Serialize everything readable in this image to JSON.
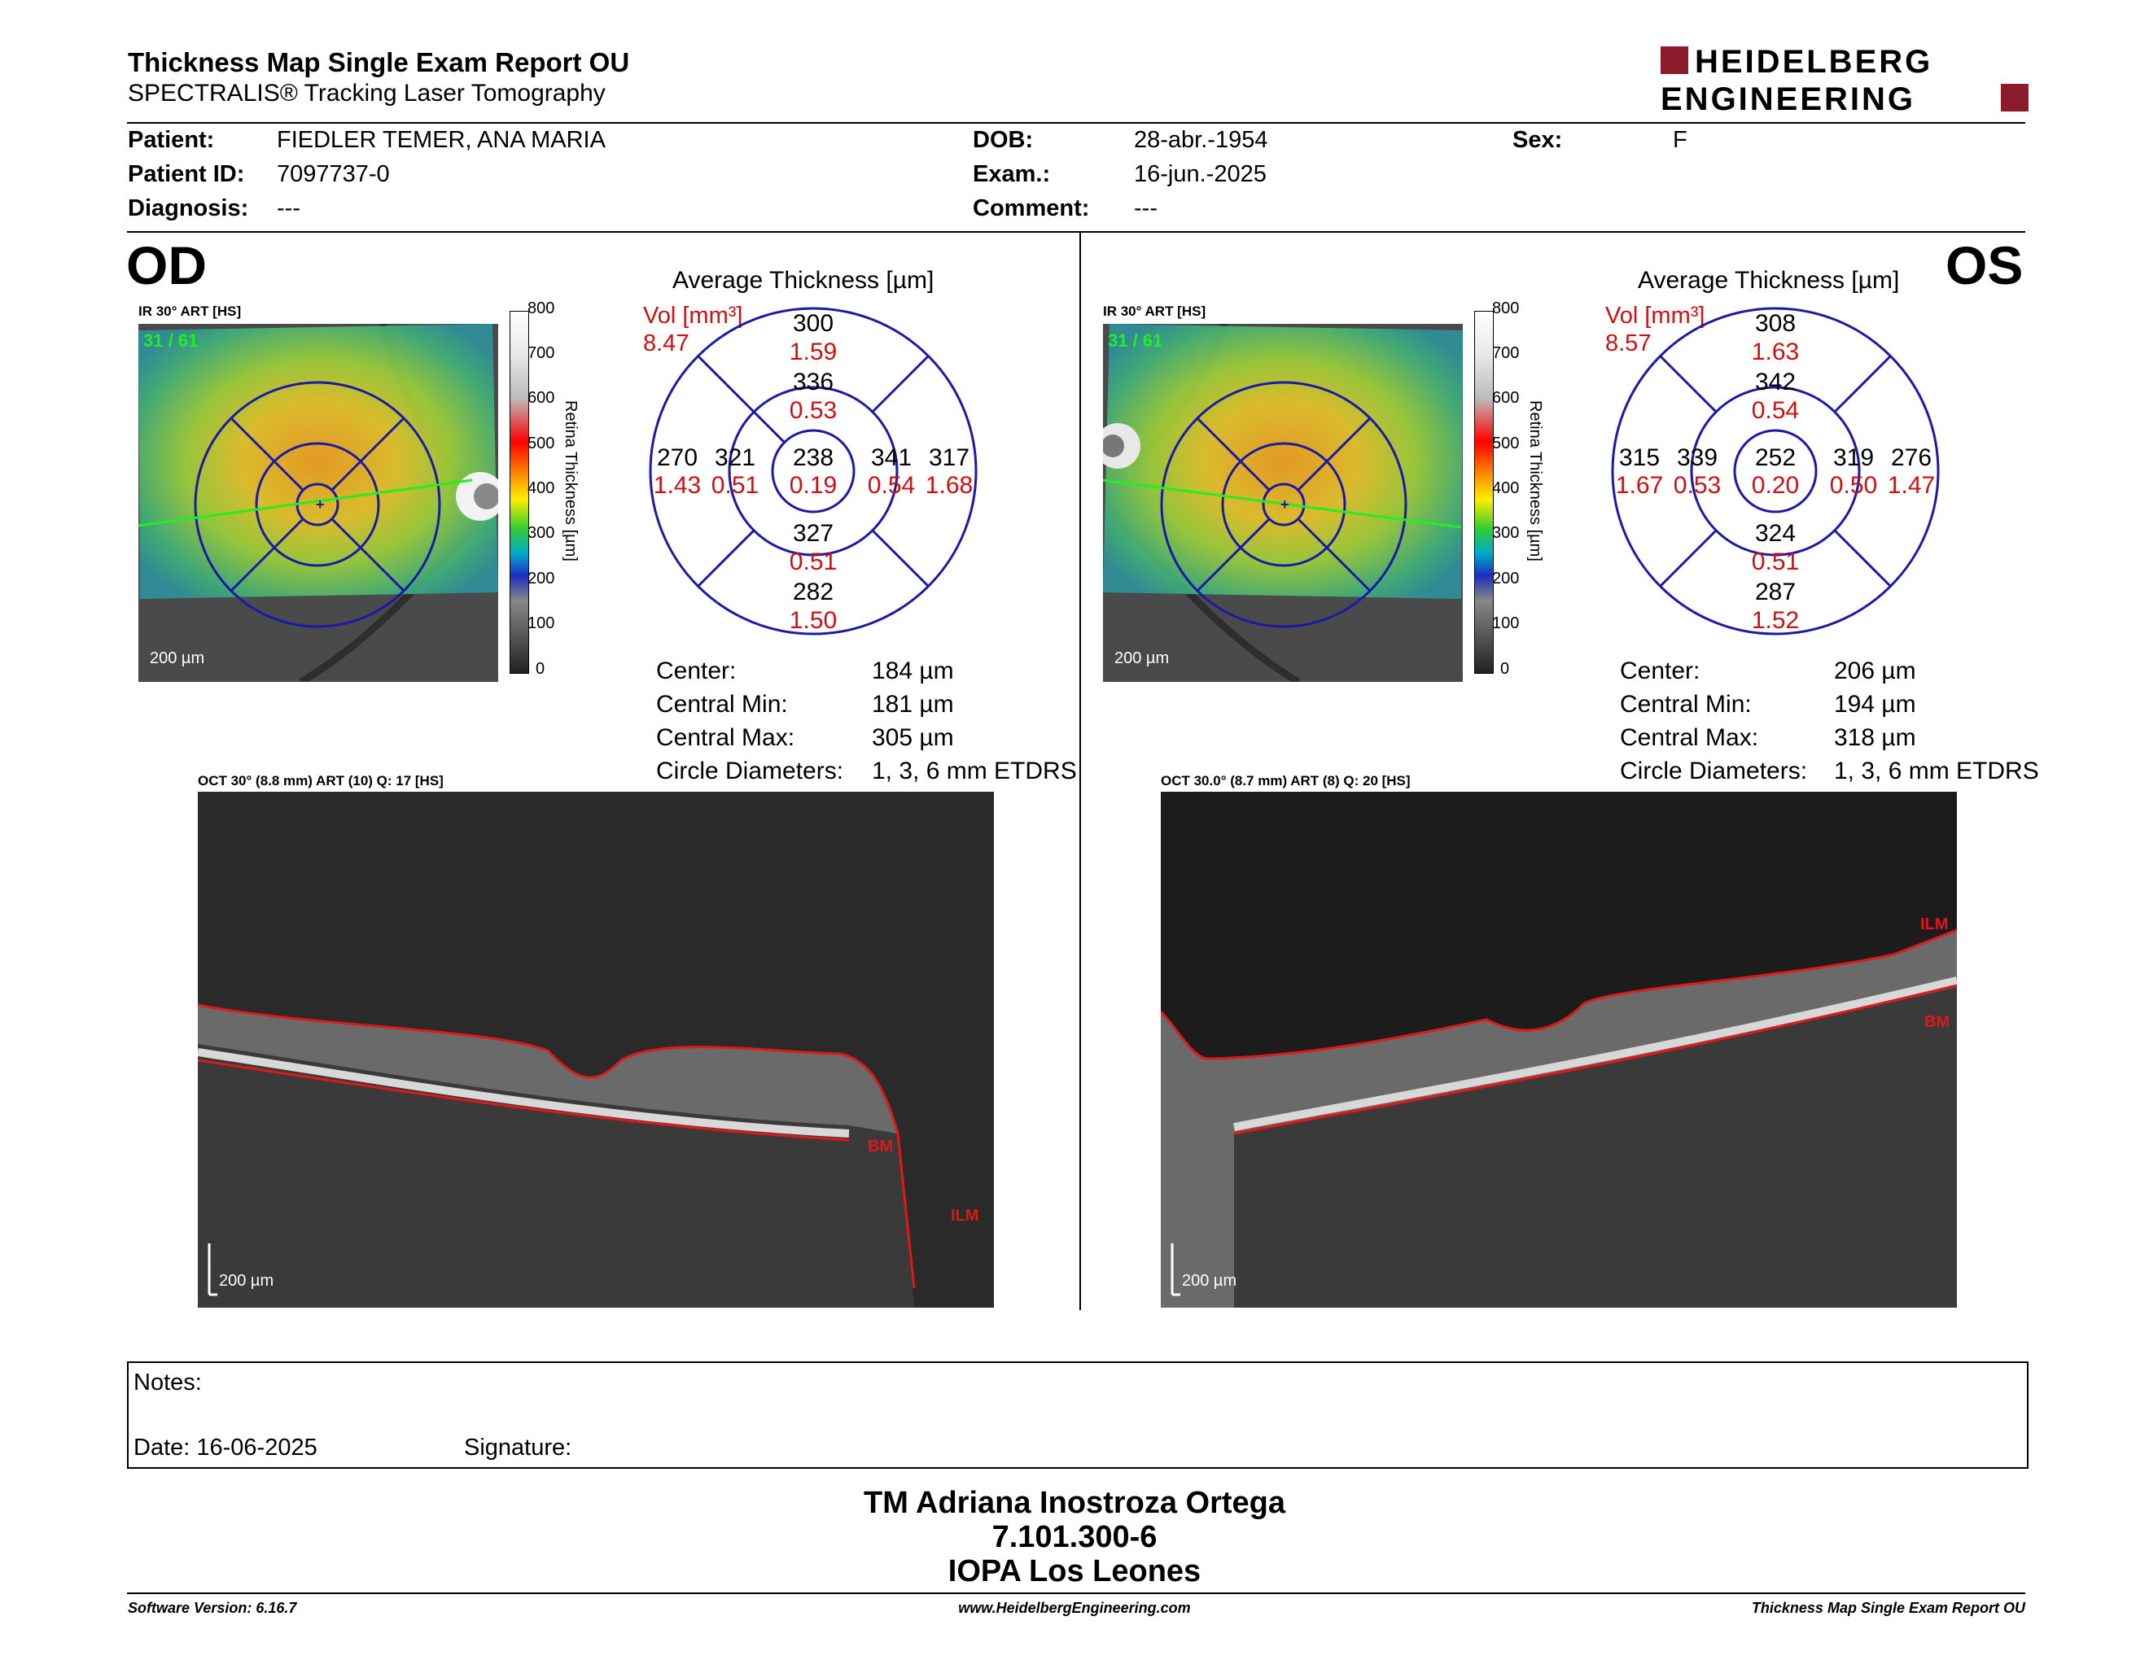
{
  "header": {
    "title": "Thickness Map Single Exam Report OU",
    "subtitle": "SPECTRALIS® Tracking Laser Tomography",
    "logo_top": "HEIDELBERG",
    "logo_bottom": "ENGINEERING",
    "logo_color": "#8b1a2b"
  },
  "patient": {
    "patient_label": "Patient:",
    "patient_value": "FIEDLER TEMER, ANA MARIA",
    "id_label": "Patient ID:",
    "id_value": "7097737-0",
    "diag_label": "Diagnosis:",
    "diag_value": "---",
    "dob_label": "DOB:",
    "dob_value": "28-abr.-1954",
    "exam_label": "Exam.:",
    "exam_value": "16-jun.-2025",
    "comment_label": "Comment:",
    "comment_value": "---",
    "sex_label": "Sex:",
    "sex_value": "F"
  },
  "od": {
    "eye": "OD",
    "ir_label": "IR 30° ART [HS]",
    "frame": "31 / 61",
    "scale": "200 µm",
    "colorbar_ticks": [
      "800",
      "700",
      "600",
      "500",
      "400",
      "300",
      "200",
      "100",
      "0"
    ],
    "colorbar_label": "Retina Thickness [µm]",
    "avg_title": "Average Thickness [µm]",
    "vol_label": "Vol [mm³]",
    "vol_value": "8.47",
    "grid": {
      "center": {
        "t": "238",
        "v": "0.19"
      },
      "inner_sup": {
        "t": "336",
        "v": "0.53"
      },
      "inner_inf": {
        "t": "327",
        "v": "0.51"
      },
      "inner_left": {
        "t": "321",
        "v": "0.51"
      },
      "inner_right": {
        "t": "341",
        "v": "0.54"
      },
      "outer_sup": {
        "t": "300",
        "v": "1.59"
      },
      "outer_inf": {
        "t": "282",
        "v": "1.50"
      },
      "outer_left": {
        "t": "270",
        "v": "1.43"
      },
      "outer_right": {
        "t": "317",
        "v": "1.68"
      }
    },
    "stats": [
      {
        "label": "Center:",
        "value": "184 µm"
      },
      {
        "label": "Central Min:",
        "value": "181 µm"
      },
      {
        "label": "Central Max:",
        "value": "305 µm"
      },
      {
        "label": "Circle Diameters:",
        "value": "1, 3, 6 mm ETDRS"
      }
    ],
    "oct_label": "OCT 30° (8.8 mm) ART (10) Q: 17 [HS]",
    "oct_scale": "200 µm",
    "ilm": "ILM",
    "bm": "BM"
  },
  "os": {
    "eye": "OS",
    "ir_label": "IR 30° ART [HS]",
    "frame": "31 / 61",
    "scale": "200 µm",
    "colorbar_ticks": [
      "800",
      "700",
      "600",
      "500",
      "400",
      "300",
      "200",
      "100",
      "0"
    ],
    "colorbar_label": "Retina Thickness [µm]",
    "avg_title": "Average Thickness [µm]",
    "vol_label": "Vol [mm³]",
    "vol_value": "8.57",
    "grid": {
      "center": {
        "t": "252",
        "v": "0.20"
      },
      "inner_sup": {
        "t": "342",
        "v": "0.54"
      },
      "inner_inf": {
        "t": "324",
        "v": "0.51"
      },
      "inner_left": {
        "t": "339",
        "v": "0.53"
      },
      "inner_right": {
        "t": "319",
        "v": "0.50"
      },
      "outer_sup": {
        "t": "308",
        "v": "1.63"
      },
      "outer_inf": {
        "t": "287",
        "v": "1.52"
      },
      "outer_left": {
        "t": "315",
        "v": "1.67"
      },
      "outer_right": {
        "t": "276",
        "v": "1.47"
      }
    },
    "stats": [
      {
        "label": "Center:",
        "value": "206 µm"
      },
      {
        "label": "Central Min:",
        "value": "194 µm"
      },
      {
        "label": "Central Max:",
        "value": "318 µm"
      },
      {
        "label": "Circle Diameters:",
        "value": "1, 3, 6 mm ETDRS"
      }
    ],
    "oct_label": "OCT 30.0° (8.7 mm) ART (8) Q: 20 [HS]",
    "oct_scale": "200 µm",
    "ilm": "ILM",
    "bm": "BM"
  },
  "notes": {
    "notes_label": "Notes:",
    "date_label": "Date: 16-06-2025",
    "signature_label": "Signature:"
  },
  "signoff": {
    "line1": "TM Adriana Inostroza Ortega",
    "line2": "7.101.300-6",
    "line3": "IOPA Los Leones"
  },
  "footer": {
    "left": "Software Version: 6.16.7",
    "center": "www.HeidelbergEngineering.com",
    "right": "Thickness Map Single Exam Report OU"
  },
  "colors": {
    "grid_blue": "#1a1aa6",
    "value_red": "#d01010",
    "frame_green": "#22ee22",
    "seg_red": "#e01818"
  }
}
